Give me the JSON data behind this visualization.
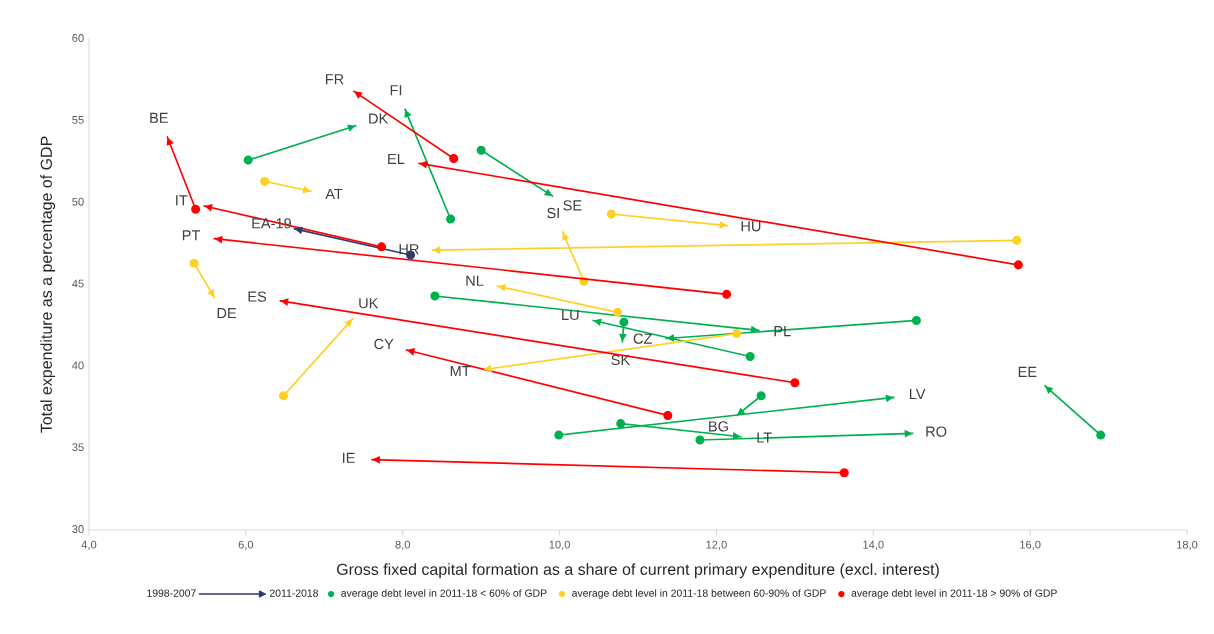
{
  "chart_data": {
    "type": "line",
    "xlabel": "Gross fixed capital formation as a share of current primary expenditure (excl. interest)",
    "ylabel": "Total expenditure as a percentage of GDP",
    "xlim": [
      4,
      18
    ],
    "xticks": [
      {
        "value": 4,
        "label": "4,0"
      },
      {
        "value": 6,
        "label": "6,0"
      },
      {
        "value": 8,
        "label": "8,0"
      },
      {
        "value": 10,
        "label": "10,0"
      },
      {
        "value": 12,
        "label": "12,0"
      },
      {
        "value": 14,
        "label": "14,0"
      },
      {
        "value": 16,
        "label": "16,0"
      },
      {
        "value": 18,
        "label": "18,0"
      }
    ],
    "ylim": [
      30,
      60
    ],
    "yticks": [
      30,
      35,
      40,
      45,
      50,
      55,
      60
    ],
    "grid": false,
    "legend": "bottom",
    "marker": "circle",
    "line_style": "solid",
    "series": [
      {
        "color": "#2f3a70",
        "x": [
          8.1,
          6.62
        ],
        "values": [
          46.8,
          48.4
        ],
        "value_labels": [
          null,
          "EA-19"
        ]
      },
      {
        "name": "average debt level in 2011-18 < 60% of GDP",
        "color": "#00b050",
        "x": [
          6.03,
          7.4,
          null,
          8.61,
          8.03,
          null,
          9.0,
          9.91,
          null,
          8.41,
          12.54,
          null,
          14.55,
          11.36,
          null,
          12.43,
          10.43,
          null,
          10.82,
          10.8,
          null,
          16.9,
          16.19,
          null,
          9.99,
          14.26,
          null,
          12.57,
          12.26,
          null,
          10.78,
          12.31,
          null,
          11.79,
          14.5
        ],
        "values": [
          52.6,
          54.7,
          null,
          49.0,
          55.7,
          null,
          53.2,
          50.4,
          null,
          44.3,
          42.2,
          null,
          42.8,
          41.7,
          null,
          40.6,
          42.8,
          null,
          42.7,
          41.5,
          null,
          35.8,
          38.8,
          null,
          35.8,
          38.1,
          null,
          38.2,
          37.0,
          null,
          36.5,
          35.7,
          null,
          35.5,
          35.9
        ],
        "value_labels": [
          null,
          "DK",
          null,
          null,
          "FI",
          null,
          null,
          "SE",
          null,
          null,
          "PL",
          null,
          null,
          "CZ",
          null,
          null,
          "LU",
          null,
          null,
          "SK",
          null,
          null,
          "EE",
          null,
          null,
          "LV",
          null,
          null,
          "BG",
          null,
          null,
          "LT",
          null,
          null,
          "RO"
        ]
      },
      {
        "name": "average debt level in 2011-18 between 60-90% of GDP",
        "color": "#ffd024",
        "x": [
          6.24,
          6.83,
          null,
          10.66,
          12.14,
          null,
          10.31,
          10.04,
          null,
          10.74,
          9.21,
          null,
          15.83,
          8.38,
          null,
          5.34,
          5.6,
          null,
          6.48,
          7.36,
          null,
          12.26,
          9.03
        ],
        "values": [
          51.3,
          50.7,
          null,
          49.3,
          48.6,
          null,
          45.2,
          48.2,
          null,
          43.3,
          44.9,
          null,
          47.7,
          47.1,
          null,
          46.3,
          44.2,
          null,
          38.2,
          42.9,
          null,
          42.0,
          39.8
        ],
        "value_labels": [
          null,
          "AT",
          null,
          null,
          "HU",
          null,
          null,
          "SI",
          null,
          null,
          "NL",
          null,
          null,
          "HR",
          null,
          null,
          "DE",
          null,
          null,
          "UK",
          null,
          null,
          "MT"
        ]
      },
      {
        "name": "average debt level in 2011-18 > 90% of GDP",
        "color": "#ff0000",
        "x": [
          8.65,
          7.38,
          null,
          5.36,
          5.0,
          null,
          7.73,
          5.47,
          null,
          12.13,
          5.6,
          null,
          15.85,
          8.21,
          null,
          11.38,
          8.05,
          null,
          13.0,
          6.44,
          null,
          13.63,
          7.61
        ],
        "values": [
          52.7,
          56.8,
          null,
          49.6,
          54.0,
          null,
          47.3,
          49.8,
          null,
          44.4,
          47.8,
          null,
          46.2,
          52.4,
          null,
          37.0,
          41.0,
          null,
          39.0,
          44.0,
          null,
          33.5,
          34.3
        ],
        "value_labels": [
          null,
          "FR",
          null,
          null,
          "BE",
          null,
          null,
          "IT",
          null,
          null,
          "PT",
          null,
          null,
          "EL",
          null,
          null,
          "CY",
          null,
          null,
          "ES",
          null,
          null,
          "IE"
        ]
      }
    ],
    "annotations": [
      "1998-2007",
      "2011-2018"
    ]
  }
}
